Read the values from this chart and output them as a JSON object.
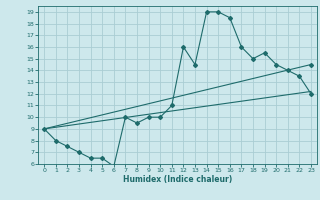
{
  "xlabel": "Humidex (Indice chaleur)",
  "bg_color": "#cde8ec",
  "grid_color": "#aacdd4",
  "line_color": "#1e6b6b",
  "xlim": [
    -0.5,
    23.5
  ],
  "ylim": [
    6,
    19.5
  ],
  "xticks": [
    0,
    1,
    2,
    3,
    4,
    5,
    6,
    7,
    8,
    9,
    10,
    11,
    12,
    13,
    14,
    15,
    16,
    17,
    18,
    19,
    20,
    21,
    22,
    23
  ],
  "yticks": [
    6,
    7,
    8,
    9,
    10,
    11,
    12,
    13,
    14,
    15,
    16,
    17,
    18,
    19
  ],
  "curve_x": [
    0,
    1,
    2,
    3,
    4,
    5,
    6,
    7,
    8,
    9,
    10,
    11,
    12,
    13,
    14,
    15,
    16,
    17,
    18,
    19,
    20,
    21,
    22,
    23
  ],
  "curve_y": [
    9,
    8,
    7.5,
    7,
    6.5,
    6.5,
    5.8,
    10,
    9.5,
    10,
    10,
    11,
    16,
    14.5,
    19.0,
    19.0,
    18.5,
    16,
    15,
    15.5,
    14.5,
    14,
    13.5,
    12
  ],
  "line1_x": [
    0,
    23
  ],
  "line1_y": [
    9,
    12.2
  ],
  "line2_x": [
    0,
    23
  ],
  "line2_y": [
    9,
    14.5
  ],
  "straight_markers_x": [
    23
  ],
  "straight_markers_y": [
    14.5
  ]
}
